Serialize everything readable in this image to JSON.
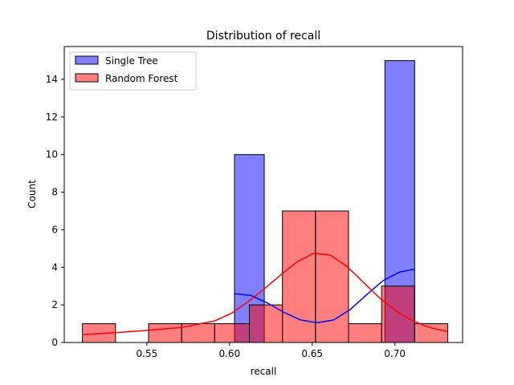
{
  "chart_data": {
    "type": "histogram",
    "title": "Distribution of recall",
    "xlabel": "recall",
    "ylabel": "Count",
    "xlim": [
      0.5,
      0.741
    ],
    "ylim": [
      0,
      15.75
    ],
    "xticks": [
      0.55,
      0.6,
      0.65,
      0.7
    ],
    "xtick_labels": [
      "0.55",
      "0.60",
      "0.65",
      "0.70"
    ],
    "yticks": [
      0,
      2,
      4,
      6,
      8,
      10,
      12,
      14
    ],
    "ytick_labels": [
      "0",
      "2",
      "4",
      "6",
      "8",
      "10",
      "12",
      "14"
    ],
    "legend_position": "top-left",
    "grid": false,
    "series": [
      {
        "name": "Single Tree",
        "color": "#0000ff",
        "fill_opacity": 0.5,
        "bins": [
          {
            "x0": 0.603,
            "x1": 0.621,
            "count": 10
          },
          {
            "x0": 0.621,
            "x1": 0.694,
            "count": 0
          },
          {
            "x0": 0.694,
            "x1": 0.712,
            "count": 15
          }
        ],
        "kde": [
          [
            0.603,
            2.6
          ],
          [
            0.613,
            2.5
          ],
          [
            0.623,
            2.1
          ],
          [
            0.633,
            1.6
          ],
          [
            0.643,
            1.2
          ],
          [
            0.653,
            1.05
          ],
          [
            0.663,
            1.2
          ],
          [
            0.673,
            1.75
          ],
          [
            0.683,
            2.55
          ],
          [
            0.693,
            3.3
          ],
          [
            0.703,
            3.75
          ],
          [
            0.712,
            3.9
          ]
        ]
      },
      {
        "name": "Random Forest",
        "color": "#ff0000",
        "fill_opacity": 0.5,
        "bins": [
          {
            "x0": 0.511,
            "x1": 0.531,
            "count": 1
          },
          {
            "x0": 0.531,
            "x1": 0.551,
            "count": 0
          },
          {
            "x0": 0.551,
            "x1": 0.571,
            "count": 1
          },
          {
            "x0": 0.571,
            "x1": 0.591,
            "count": 1
          },
          {
            "x0": 0.591,
            "x1": 0.612,
            "count": 1
          },
          {
            "x0": 0.612,
            "x1": 0.632,
            "count": 2
          },
          {
            "x0": 0.632,
            "x1": 0.652,
            "count": 7
          },
          {
            "x0": 0.652,
            "x1": 0.672,
            "count": 7
          },
          {
            "x0": 0.672,
            "x1": 0.692,
            "count": 1
          },
          {
            "x0": 0.692,
            "x1": 0.712,
            "count": 3
          },
          {
            "x0": 0.712,
            "x1": 0.732,
            "count": 1
          }
        ],
        "kde": [
          [
            0.511,
            0.42
          ],
          [
            0.531,
            0.52
          ],
          [
            0.551,
            0.65
          ],
          [
            0.571,
            0.8
          ],
          [
            0.591,
            1.15
          ],
          [
            0.601,
            1.55
          ],
          [
            0.611,
            2.15
          ],
          [
            0.621,
            2.85
          ],
          [
            0.631,
            3.6
          ],
          [
            0.641,
            4.3
          ],
          [
            0.651,
            4.75
          ],
          [
            0.661,
            4.65
          ],
          [
            0.671,
            4.05
          ],
          [
            0.681,
            3.2
          ],
          [
            0.691,
            2.35
          ],
          [
            0.701,
            1.65
          ],
          [
            0.711,
            1.15
          ],
          [
            0.721,
            0.8
          ],
          [
            0.732,
            0.58
          ]
        ]
      }
    ]
  }
}
